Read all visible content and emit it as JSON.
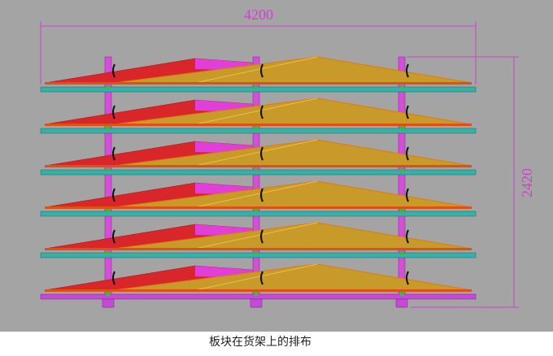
{
  "dimensions": {
    "width_label": "4200",
    "height_label": "2420"
  },
  "caption": "板块在货架上的排布"
}
